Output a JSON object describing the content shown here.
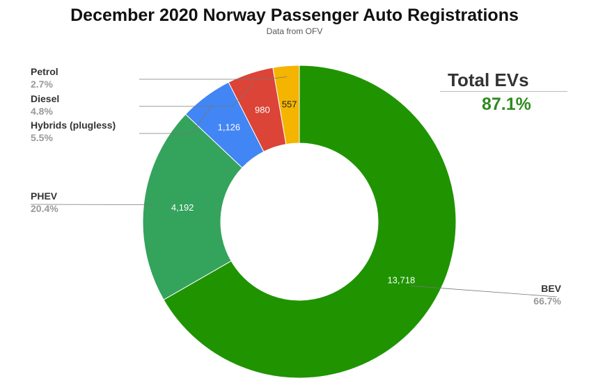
{
  "header": {
    "title": "December 2020 Norway Passenger Auto Registrations",
    "subtitle": "Data from OFV"
  },
  "summary": {
    "label": "Total EVs",
    "value": "87.1%",
    "value_color": "#2e8b1e"
  },
  "chart_data": {
    "type": "pie",
    "title": "December 2020 Norway Passenger Auto Registrations",
    "subtitle": "Data from OFV",
    "donut": true,
    "legend": "outside-labels",
    "slices": [
      {
        "name": "BEV",
        "value": 13718,
        "value_label": "13,718",
        "percent_label": "66.7%",
        "color": "#1f9400",
        "value_text_color": "#ffffff"
      },
      {
        "name": "PHEV",
        "value": 4192,
        "value_label": "4,192",
        "percent_label": "20.4%",
        "color": "#34a35c",
        "value_text_color": "#ffffff"
      },
      {
        "name": "Hybrids (plugless)",
        "value": 1126,
        "value_label": "1,126",
        "percent_label": "5.5%",
        "color": "#4285f4",
        "value_text_color": "#ffffff"
      },
      {
        "name": "Diesel",
        "value": 980,
        "value_label": "980",
        "percent_label": "4.8%",
        "color": "#db4437",
        "value_text_color": "#ffffff"
      },
      {
        "name": "Petrol",
        "value": 557,
        "value_label": "557",
        "percent_label": "2.7%",
        "color": "#f4b400",
        "value_text_color": "#222222"
      }
    ]
  }
}
